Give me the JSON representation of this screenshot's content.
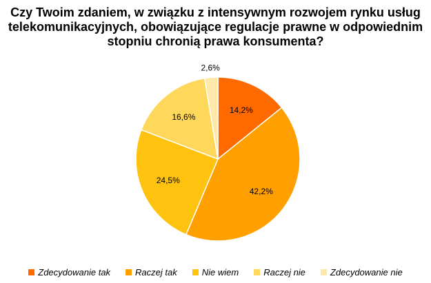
{
  "chart_data": {
    "type": "pie",
    "title_lines": [
      "Czy Twoim zdaniem, w związku z intensywnym rozwojem rynku usług",
      "telekomunikacyjnych, obowiązujące regulacje prawne w odpowiednim",
      "stopniu chronią prawa konsumenta?"
    ],
    "categories": [
      "Zdecydowanie tak",
      "Raczej tak",
      "Nie wiem",
      "Raczej nie",
      "Zdecydowanie nie"
    ],
    "values": [
      14.2,
      42.2,
      24.5,
      16.6,
      2.6
    ],
    "labels": [
      "14,2%",
      "42,2%",
      "24,5%",
      "16,6%",
      "2,6%"
    ],
    "colors": [
      "#ff6a00",
      "#ffa000",
      "#ffc20e",
      "#ffd75a",
      "#ffe9a8"
    ],
    "legend_position": "bottom"
  }
}
